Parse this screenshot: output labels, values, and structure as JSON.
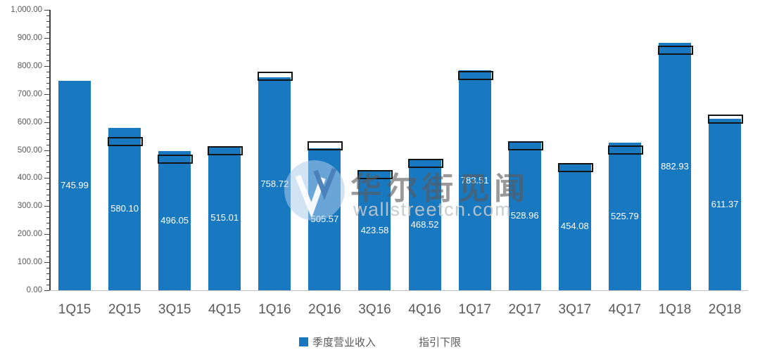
{
  "watermark": {
    "logo_letter": "W",
    "line_cn": "华尔街见闻",
    "line_en": "wallstreetcn.com"
  },
  "legend": {
    "items": [
      {
        "label": "季度营业收入",
        "swatch_color": "#1878C0",
        "swatch_border": "none"
      },
      {
        "label": "指引下限",
        "swatch_color": "#FFFFFF",
        "swatch_border": "none"
      }
    ]
  },
  "chart_data": {
    "type": "bar",
    "title": "",
    "xlabel": "",
    "ylabel": "",
    "categories": [
      "1Q15",
      "2Q15",
      "3Q15",
      "4Q15",
      "1Q16",
      "2Q16",
      "3Q16",
      "4Q16",
      "1Q17",
      "2Q17",
      "3Q17",
      "4Q17",
      "1Q18",
      "2Q18"
    ],
    "series": [
      {
        "name": "季度营业收入",
        "type": "bar",
        "color": "#1878C0",
        "values": [
          745.99,
          580.1,
          496.05,
          515.01,
          758.72,
          505.57,
          423.58,
          468.52,
          783.51,
          528.96,
          454.08,
          525.79,
          882.93,
          611.37
        ],
        "value_labels_shown": true
      },
      {
        "name": "指引下限",
        "type": "range-box-marker",
        "border_color": "#141414",
        "fill": "transparent",
        "values_estimated_from_pixels": true,
        "values": [
          null,
          530,
          468,
          497,
          763,
          514,
          413,
          453,
          766,
          516,
          438,
          500,
          855,
          610
        ],
        "box_half_range": 16
      }
    ],
    "ylim": [
      0,
      1000
    ],
    "ytick_step": 100,
    "ytick_minor_step": 20,
    "ytick_labels": [
      "1,000.00",
      "900.00",
      "800.00",
      "700.00",
      "600.00",
      "500.00",
      "400.00",
      "300.00",
      "200.00",
      "100.00",
      "0.00"
    ],
    "grid": false,
    "legend_position": "bottom-center"
  }
}
